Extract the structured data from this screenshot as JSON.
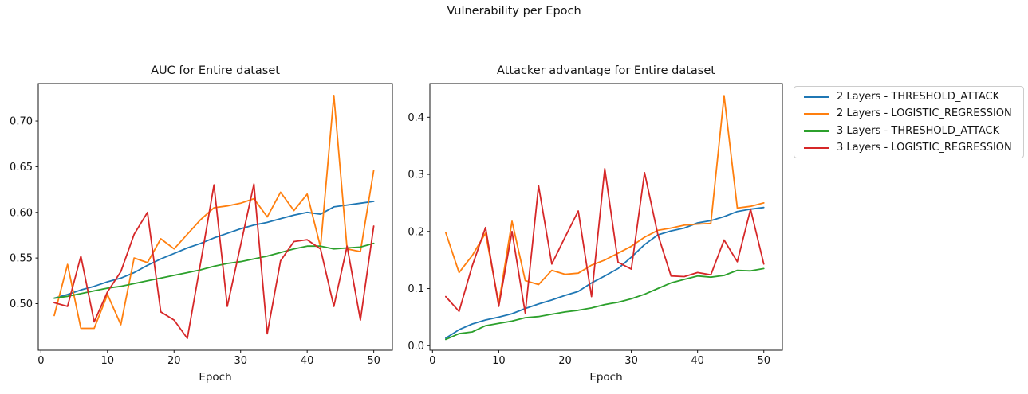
{
  "figure": {
    "title": "Vulnerability per Epoch"
  },
  "legend": {
    "entries": [
      {
        "label": "2 Layers - THRESHOLD_ATTACK",
        "color": "#1f77b4"
      },
      {
        "label": "2 Layers - LOGISTIC_REGRESSION",
        "color": "#ff7f0e"
      },
      {
        "label": "3 Layers - THRESHOLD_ATTACK",
        "color": "#2ca02c"
      },
      {
        "label": "3 Layers - LOGISTIC_REGRESSION",
        "color": "#d62728"
      }
    ]
  },
  "chart_data": [
    {
      "type": "line",
      "title": "AUC for Entire dataset",
      "xlabel": "Epoch",
      "xlim": [
        -0.4,
        52.8
      ],
      "ylim": [
        0.449,
        0.741
      ],
      "xtick_values": [
        0,
        10,
        20,
        30,
        40,
        50
      ],
      "xtick_labels": [
        "0",
        "10",
        "20",
        "30",
        "40",
        "50"
      ],
      "ytick_values": [
        0.5,
        0.55,
        0.6,
        0.65,
        0.7
      ],
      "ytick_labels": [
        "0.50",
        "0.55",
        "0.60",
        "0.65",
        "0.70"
      ],
      "x": [
        2,
        4,
        6,
        8,
        10,
        12,
        14,
        16,
        18,
        20,
        22,
        24,
        26,
        28,
        30,
        32,
        34,
        36,
        38,
        40,
        42,
        44,
        46,
        48,
        50
      ],
      "series": [
        {
          "name": "2 Layers - THRESHOLD_ATTACK",
          "color": "#1f77b4",
          "values": [
            0.506,
            0.51,
            0.515,
            0.519,
            0.524,
            0.528,
            0.534,
            0.542,
            0.549,
            0.555,
            0.561,
            0.566,
            0.572,
            0.577,
            0.582,
            0.586,
            0.589,
            0.593,
            0.597,
            0.6,
            0.598,
            0.606,
            0.608,
            0.61,
            0.612
          ]
        },
        {
          "name": "2 Layers - LOGISTIC_REGRESSION",
          "color": "#ff7f0e",
          "values": [
            0.487,
            0.543,
            0.473,
            0.473,
            0.51,
            0.477,
            0.55,
            0.545,
            0.571,
            0.56,
            0.576,
            0.592,
            0.605,
            0.607,
            0.61,
            0.615,
            0.595,
            0.622,
            0.602,
            0.62,
            0.562,
            0.728,
            0.56,
            0.557,
            0.646
          ]
        },
        {
          "name": "3 Layers - THRESHOLD_ATTACK",
          "color": "#2ca02c",
          "values": [
            0.506,
            0.508,
            0.511,
            0.514,
            0.517,
            0.519,
            0.522,
            0.525,
            0.528,
            0.531,
            0.534,
            0.537,
            0.541,
            0.544,
            0.546,
            0.549,
            0.552,
            0.556,
            0.56,
            0.563,
            0.563,
            0.56,
            0.561,
            0.562,
            0.566
          ]
        },
        {
          "name": "3 Layers - LOGISTIC_REGRESSION",
          "color": "#d62728",
          "values": [
            0.501,
            0.497,
            0.552,
            0.48,
            0.513,
            0.535,
            0.576,
            0.6,
            0.491,
            0.482,
            0.462,
            0.545,
            0.63,
            0.497,
            0.564,
            0.631,
            0.467,
            0.547,
            0.568,
            0.57,
            0.56,
            0.497,
            0.563,
            0.482,
            0.585
          ]
        }
      ]
    },
    {
      "type": "line",
      "title": "Attacker advantage for Entire dataset",
      "xlabel": "Epoch",
      "xlim": [
        -0.4,
        52.8
      ],
      "ylim": [
        -0.008,
        0.459
      ],
      "xtick_values": [
        0,
        10,
        20,
        30,
        40,
        50
      ],
      "xtick_labels": [
        "0",
        "10",
        "20",
        "30",
        "40",
        "50"
      ],
      "ytick_values": [
        0.0,
        0.1,
        0.2,
        0.3,
        0.4
      ],
      "ytick_labels": [
        "0.0",
        "0.1",
        "0.2",
        "0.3",
        "0.4"
      ],
      "x": [
        2,
        4,
        6,
        8,
        10,
        12,
        14,
        16,
        18,
        20,
        22,
        24,
        26,
        28,
        30,
        32,
        34,
        36,
        38,
        40,
        42,
        44,
        46,
        48,
        50
      ],
      "series": [
        {
          "name": "2 Layers - THRESHOLD_ATTACK",
          "color": "#1f77b4",
          "values": [
            0.013,
            0.028,
            0.038,
            0.045,
            0.05,
            0.056,
            0.065,
            0.073,
            0.08,
            0.088,
            0.095,
            0.11,
            0.122,
            0.135,
            0.155,
            0.177,
            0.194,
            0.201,
            0.206,
            0.215,
            0.219,
            0.226,
            0.235,
            0.239,
            0.242
          ]
        },
        {
          "name": "2 Layers - LOGISTIC_REGRESSION",
          "color": "#ff7f0e",
          "values": [
            0.198,
            0.128,
            0.158,
            0.197,
            0.074,
            0.218,
            0.114,
            0.107,
            0.132,
            0.125,
            0.127,
            0.141,
            0.15,
            0.162,
            0.174,
            0.19,
            0.202,
            0.206,
            0.211,
            0.213,
            0.214,
            0.438,
            0.241,
            0.244,
            0.25
          ]
        },
        {
          "name": "3 Layers - THRESHOLD_ATTACK",
          "color": "#2ca02c",
          "values": [
            0.011,
            0.021,
            0.024,
            0.035,
            0.039,
            0.043,
            0.049,
            0.051,
            0.055,
            0.059,
            0.062,
            0.066,
            0.072,
            0.076,
            0.082,
            0.09,
            0.1,
            0.11,
            0.116,
            0.122,
            0.12,
            0.123,
            0.132,
            0.131,
            0.135
          ]
        },
        {
          "name": "3 Layers - LOGISTIC_REGRESSION",
          "color": "#d62728",
          "values": [
            0.086,
            0.06,
            0.14,
            0.207,
            0.069,
            0.2,
            0.057,
            0.28,
            0.143,
            0.19,
            0.236,
            0.086,
            0.31,
            0.146,
            0.134,
            0.303,
            0.195,
            0.122,
            0.121,
            0.128,
            0.124,
            0.185,
            0.147,
            0.239,
            0.143
          ]
        }
      ]
    }
  ]
}
